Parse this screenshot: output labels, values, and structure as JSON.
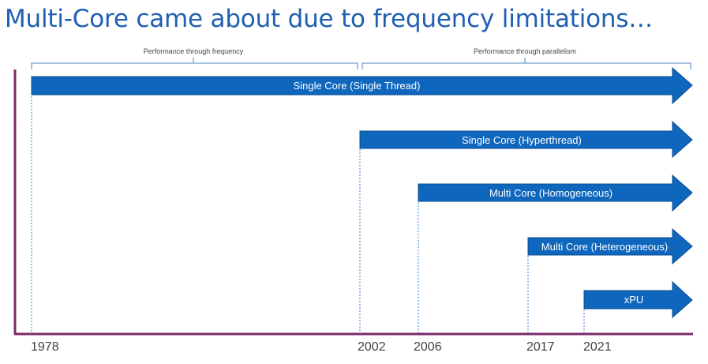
{
  "slide": {
    "title": "Multi-Core came about due to frequency limitations…"
  },
  "brackets": [
    {
      "label": "Performance through frequency"
    },
    {
      "label": "Performance through parallelism"
    }
  ],
  "arrows": [
    {
      "label": "Single Core (Single Thread)",
      "start_year": "1978"
    },
    {
      "label": "Single Core (Hyperthread)",
      "start_year": "2002"
    },
    {
      "label": "Multi Core (Homogeneous)",
      "start_year": "2006"
    },
    {
      "label": "Multi Core (Heterogeneous)",
      "start_year": "2017"
    },
    {
      "label": "xPU",
      "start_year": "2021"
    }
  ],
  "axis": {
    "years": [
      "1978",
      "2002",
      "2006",
      "2017",
      "2021"
    ]
  },
  "colors": {
    "title": "#1f5fb4",
    "arrow_fill": "#0f66bd",
    "arrow_stroke": "#0b4f94",
    "axis": "#7b2a6a",
    "bracket": "#4f86c6",
    "guide": "#3b7fc4"
  }
}
